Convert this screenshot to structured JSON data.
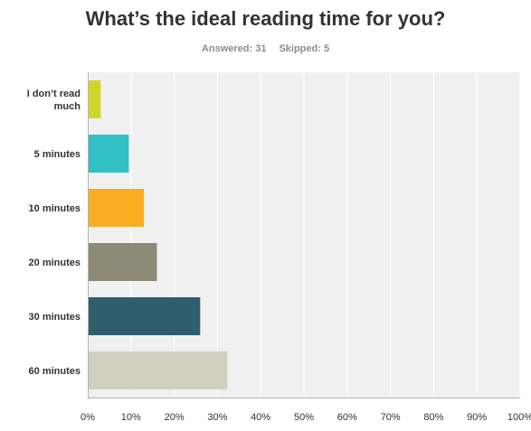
{
  "header": {
    "title": "What’s the ideal reading time for you?",
    "answered_label": "Answered: 31",
    "skipped_label": "Skipped: 5"
  },
  "colors": {
    "plot_background": "#f0f0f0",
    "gridline": "#ffffff",
    "axis": "#b3b3b3"
  },
  "chart_data": {
    "type": "bar",
    "orientation": "horizontal",
    "categories": [
      "I don’t read much",
      "5 minutes",
      "10 minutes",
      "20 minutes",
      "30 minutes",
      "60 minutes"
    ],
    "values": [
      3,
      9.5,
      13,
      16,
      26,
      32.3
    ],
    "value_unit": "%",
    "bar_colors": [
      "#cfd62a",
      "#31c0c4",
      "#f7ae22",
      "#8b8a77",
      "#2f5e6f",
      "#d1cfbf"
    ],
    "xlim": [
      0,
      100
    ],
    "xticks": [
      "0%",
      "10%",
      "20%",
      "30%",
      "40%",
      "50%",
      "60%",
      "70%",
      "80%",
      "90%",
      "100%"
    ],
    "grid": true,
    "legend": "none"
  }
}
